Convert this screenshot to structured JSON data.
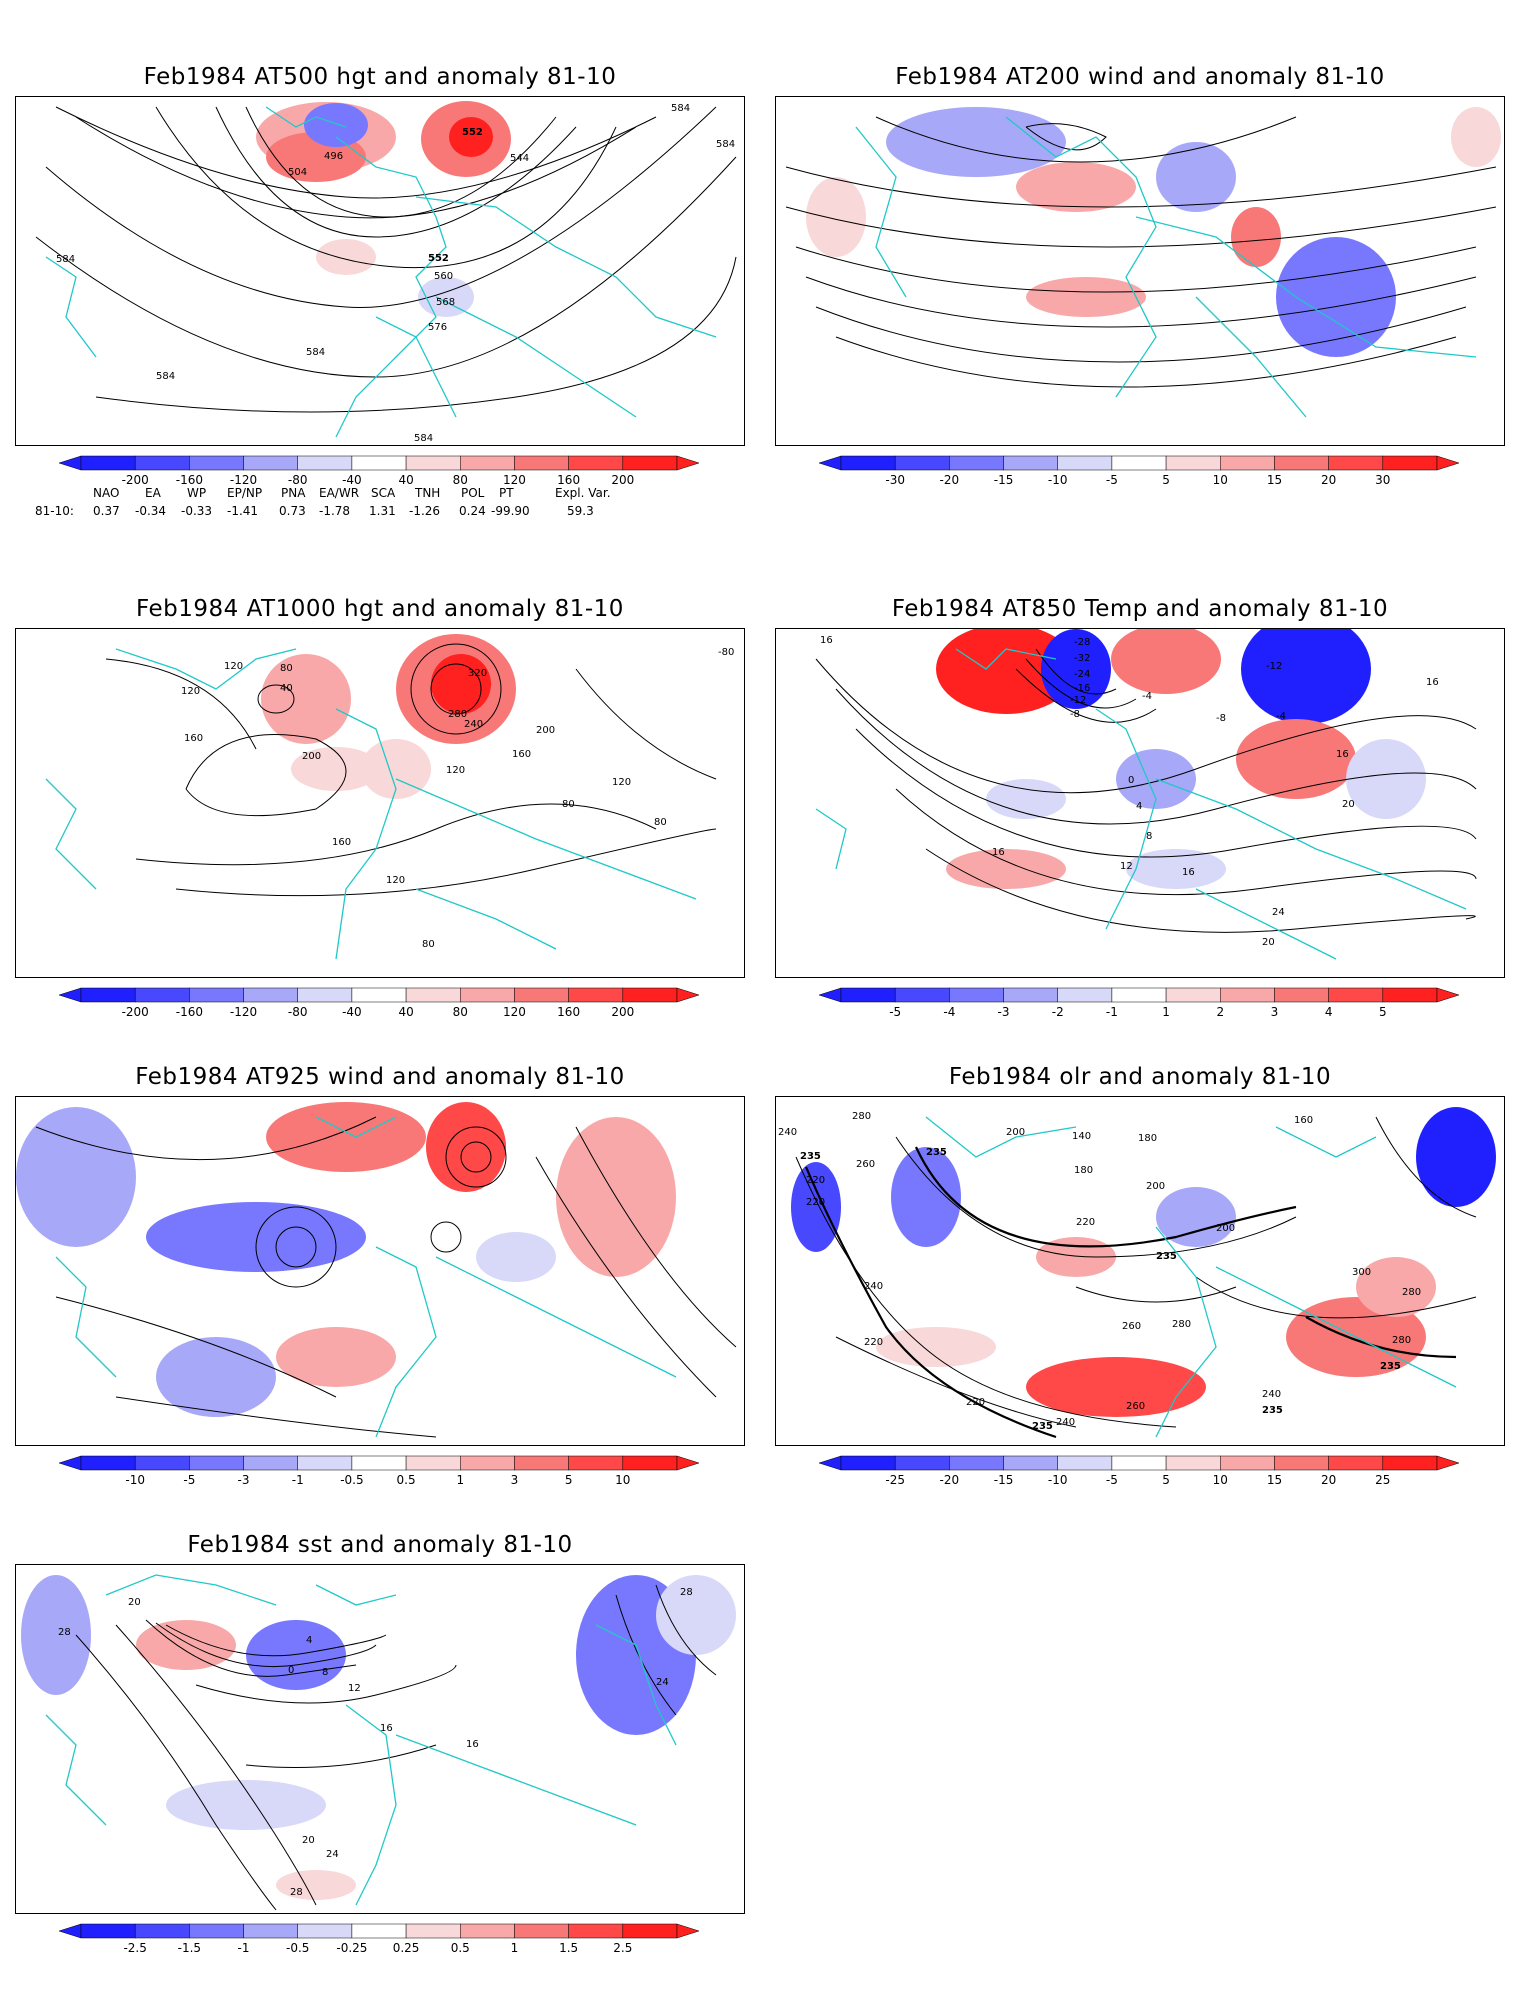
{
  "panels": [
    {
      "id": "z500",
      "title": "Feb1984 AT500 hgt and anomaly 81-10",
      "colorbar": [
        "-200",
        "-160",
        "-120",
        "-80",
        "-40",
        "40",
        "80",
        "120",
        "160",
        "200"
      ],
      "contour_labels": [
        "584",
        "584",
        "584",
        "584",
        "584",
        "584",
        "544",
        "552",
        "552",
        "496",
        "504",
        "560",
        "568",
        "576"
      ],
      "indices": {
        "headers": [
          "NAO",
          "EA",
          "WP",
          "EP/NP",
          "PNA",
          "EA/WR",
          "SCA",
          "TNH",
          "POL",
          "PT",
          "Expl. Var."
        ],
        "row_label": "81-10:",
        "values": [
          "0.37",
          "-0.34",
          "-0.33",
          "-1.41",
          "0.73",
          "-1.78",
          "1.31",
          "-1.26",
          "0.24",
          "-99.90",
          "59.3"
        ]
      }
    },
    {
      "id": "u200",
      "title": "Feb1984 AT200 wind and anomaly 81-10",
      "colorbar": [
        "-30",
        "-20",
        "-15",
        "-10",
        "-5",
        "5",
        "10",
        "15",
        "20",
        "30"
      ],
      "contour_labels": []
    },
    {
      "id": "z1000",
      "title": "Feb1984 AT1000 hgt and anomaly 81-10",
      "colorbar": [
        "-200",
        "-160",
        "-120",
        "-80",
        "-40",
        "40",
        "80",
        "120",
        "160",
        "200"
      ],
      "contour_labels": [
        "120",
        "120",
        "80",
        "40",
        "160",
        "200",
        "320",
        "280",
        "240",
        "200",
        "160",
        "120",
        "80",
        "80",
        "120",
        "160",
        "120",
        "80",
        "-80"
      ]
    },
    {
      "id": "t850",
      "title": "Feb1984 AT850 Temp and anomaly 81-10",
      "colorbar": [
        "-5",
        "-4",
        "-3",
        "-2",
        "-1",
        "1",
        "2",
        "3",
        "4",
        "5"
      ],
      "contour_labels": [
        "16",
        "-28",
        "-32",
        "-24",
        "-16",
        "-12",
        "-8",
        "-4",
        "-12",
        "-8",
        "-4",
        "16",
        "0",
        "4",
        "8",
        "12",
        "16",
        "20",
        "24",
        "20",
        "16",
        "16"
      ]
    },
    {
      "id": "w925",
      "title": "Feb1984 AT925 wind and anomaly 81-10",
      "colorbar": [
        "-10",
        "-5",
        "-3",
        "-1",
        "-0.5",
        "0.5",
        "1",
        "3",
        "5",
        "10"
      ],
      "contour_labels": []
    },
    {
      "id": "olr",
      "title": "Feb1984 olr and anomaly 81-10",
      "colorbar": [
        "-25",
        "-20",
        "-15",
        "-10",
        "-5",
        "5",
        "10",
        "15",
        "20",
        "25"
      ],
      "contour_labels": [
        "280",
        "240",
        "235",
        "220",
        "220",
        "260",
        "235",
        "140",
        "180",
        "180",
        "160",
        "200",
        "220",
        "200",
        "235",
        "240",
        "220",
        "300",
        "280",
        "260",
        "280",
        "280",
        "235",
        "240",
        "220",
        "200",
        "260",
        "240",
        "235",
        "235"
      ]
    },
    {
      "id": "sst",
      "title": "Feb1984 sst and anomaly 81-10",
      "colorbar": [
        "-2.5",
        "-1.5",
        "-1",
        "-0.5",
        "-0.25",
        "0.25",
        "0.5",
        "1",
        "1.5",
        "2.5"
      ],
      "contour_labels": [
        "28",
        "20",
        "0",
        "4",
        "8",
        "12",
        "16",
        "16",
        "20",
        "24",
        "28",
        "28",
        "24"
      ]
    }
  ],
  "colors": {
    "neg": [
      "#2020ff",
      "#4848ff",
      "#7878ff",
      "#a8a8f8",
      "#d8d8f8"
    ],
    "pos": [
      "#f8d8d8",
      "#f8a8a8",
      "#f87878",
      "#ff4848",
      "#ff2020"
    ],
    "coast": "#20c8c8",
    "contour": "#000000"
  }
}
